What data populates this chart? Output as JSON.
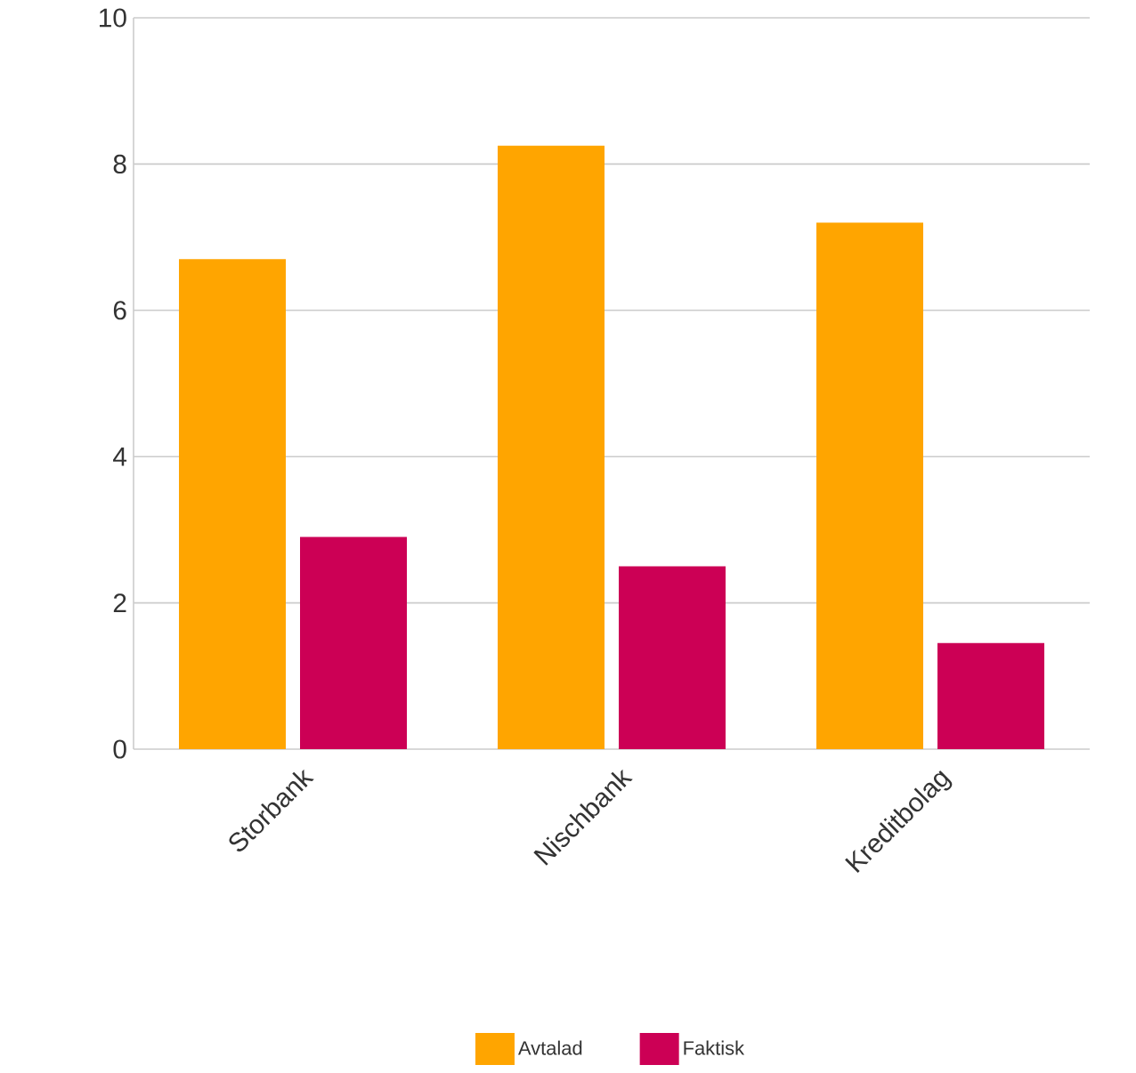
{
  "chart_data": {
    "type": "bar",
    "categories": [
      "Storbank",
      "Nischbank",
      "Kreditbolag"
    ],
    "series": [
      {
        "name": "Avtalad",
        "color": "#ffa500",
        "values": [
          6.7,
          8.25,
          7.2
        ]
      },
      {
        "name": "Faktisk",
        "color": "#cc0055",
        "values": [
          2.9,
          2.5,
          1.45
        ]
      }
    ],
    "ylim": [
      0,
      10
    ],
    "yticks": [
      0,
      2,
      4,
      6,
      8,
      10
    ],
    "grid": "y",
    "legend": "bottom"
  }
}
